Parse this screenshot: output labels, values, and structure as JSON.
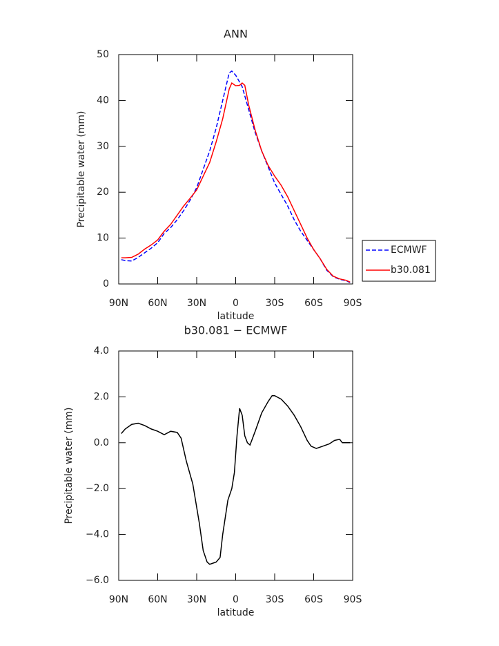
{
  "chart_data": [
    {
      "type": "line",
      "title": "ANN",
      "xlabel": "latitude",
      "ylabel": "Precipitable water (mm)",
      "x": [
        88,
        85,
        80,
        75,
        70,
        65,
        60,
        55,
        50,
        45,
        40,
        35,
        30,
        25,
        20,
        15,
        10,
        5,
        3,
        0,
        -3,
        -5,
        -7,
        -10,
        -15,
        -20,
        -25,
        -30,
        -35,
        -40,
        -45,
        -50,
        -55,
        -60,
        -65,
        -70,
        -75,
        -80,
        -85,
        -88
      ],
      "series": [
        {
          "name": "ECMWF",
          "color": "#0000ff",
          "linestyle": "dashed",
          "values": [
            5.3,
            5.1,
            5.0,
            5.8,
            6.8,
            7.8,
            9.0,
            11,
            12.3,
            14,
            16,
            18.3,
            21,
            25,
            29,
            34,
            40,
            46,
            46.4,
            45.5,
            44,
            43,
            41,
            38,
            33,
            29,
            25.5,
            22,
            19.5,
            17,
            14,
            11.5,
            9.5,
            7.5,
            5.5,
            3,
            1.6,
            1,
            0.7,
            0.3
          ]
        },
        {
          "name": "b30.081",
          "color": "#ff0000",
          "linestyle": "solid",
          "values": [
            5.7,
            5.7,
            5.8,
            6.5,
            7.6,
            8.5,
            9.6,
            11.5,
            13,
            15,
            17,
            18.7,
            20.5,
            23.5,
            26.5,
            31,
            36,
            42.5,
            43.8,
            43.2,
            43.3,
            43.8,
            43.3,
            39,
            33.5,
            29,
            25.8,
            23.5,
            21.5,
            19,
            16,
            13,
            10,
            7.5,
            5.5,
            3.2,
            1.7,
            1.1,
            0.8,
            0.4
          ]
        }
      ],
      "xlim": [
        90,
        -90
      ],
      "xticks": [
        {
          "value": 90,
          "label": "90N"
        },
        {
          "value": 60,
          "label": "60N"
        },
        {
          "value": 30,
          "label": "30N"
        },
        0,
        {
          "value": -30,
          "label": "30S"
        },
        {
          "value": -60,
          "label": "60S"
        },
        {
          "value": -90,
          "label": "90S"
        }
      ],
      "ylim": [
        0,
        50
      ],
      "yticks": [
        0,
        10,
        20,
        30,
        40,
        50
      ],
      "legend": "outside-right"
    },
    {
      "type": "line",
      "title": "b30.081 − ECMWF",
      "xlabel": "latitude",
      "ylabel": "Precipitable water (mm)",
      "x": [
        88,
        85,
        80,
        75,
        70,
        65,
        60,
        55,
        50,
        45,
        42,
        38,
        33,
        28,
        25,
        22,
        20,
        15,
        12,
        10,
        6,
        3,
        1,
        -1,
        -3,
        -5,
        -7,
        -9,
        -11,
        -15,
        -20,
        -25,
        -28,
        -30,
        -35,
        -40,
        -45,
        -50,
        -55,
        -58,
        -62,
        -67,
        -72,
        -76,
        -80,
        -82,
        -88
      ],
      "series": [
        {
          "color": "#000000",
          "linestyle": "solid",
          "values": [
            0.4,
            0.6,
            0.8,
            0.85,
            0.75,
            0.6,
            0.5,
            0.35,
            0.5,
            0.45,
            0.2,
            -0.8,
            -1.8,
            -3.5,
            -4.7,
            -5.2,
            -5.3,
            -5.2,
            -5.0,
            -4,
            -2.5,
            -2,
            -1.3,
            0.3,
            1.5,
            1.2,
            0.3,
            0,
            -0.1,
            0.5,
            1.3,
            1.8,
            2.05,
            2.05,
            1.9,
            1.6,
            1.2,
            0.7,
            0.1,
            -0.15,
            -0.25,
            -0.15,
            -0.05,
            0.1,
            0.15,
            0,
            0
          ]
        }
      ],
      "xlim": [
        90,
        -90
      ],
      "xticks": [
        {
          "value": 90,
          "label": "90N"
        },
        {
          "value": 60,
          "label": "60N"
        },
        {
          "value": 30,
          "label": "30N"
        },
        0,
        {
          "value": -30,
          "label": "30S"
        },
        {
          "value": -60,
          "label": "60S"
        },
        {
          "value": -90,
          "label": "90S"
        }
      ],
      "ylim": [
        -6,
        4
      ],
      "yticks": [
        {
          "value": -6,
          "label": "−6.0"
        },
        {
          "value": -4,
          "label": "−4.0"
        },
        {
          "value": -2,
          "label": "−2.0"
        },
        {
          "value": 0,
          "label": "0.0"
        },
        {
          "value": 2,
          "label": "2.0"
        },
        {
          "value": 4,
          "label": "4.0"
        }
      ]
    }
  ]
}
